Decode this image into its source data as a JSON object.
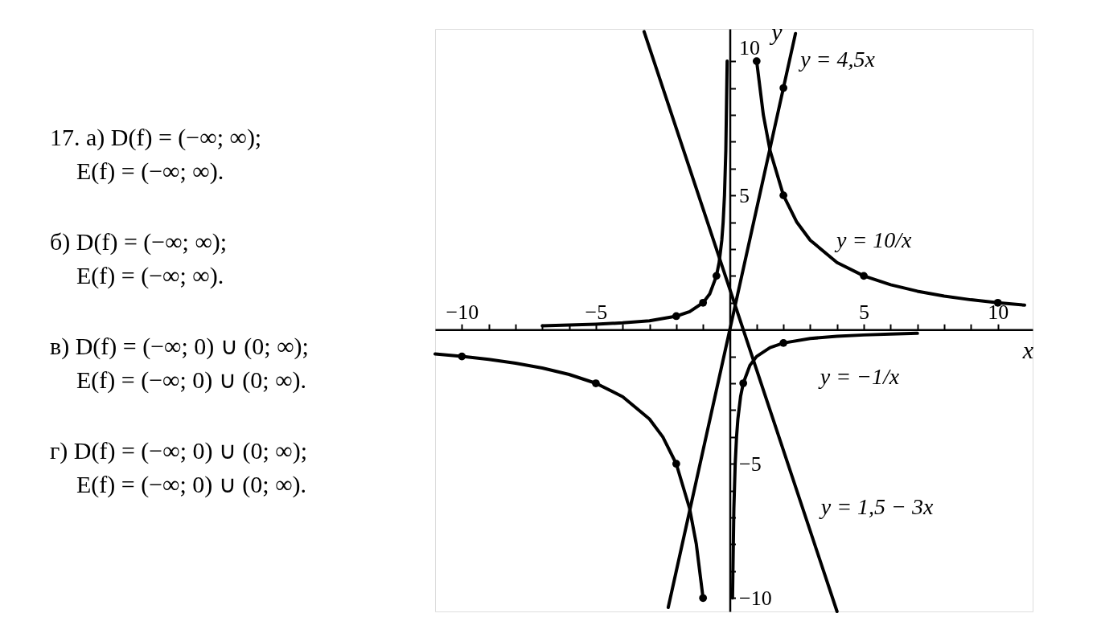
{
  "chart_data": {
    "type": "line",
    "xlabel": "x",
    "ylabel": "y",
    "xlim": [
      -11,
      11.3
    ],
    "ylim": [
      -10.5,
      11.2
    ],
    "xticks": [
      -10,
      {
        "value": -9,
        "label": null
      },
      {
        "value": -8,
        "label": null
      },
      {
        "value": -7,
        "label": null
      },
      {
        "value": -6,
        "label": null
      },
      -5,
      {
        "value": -4,
        "label": null
      },
      {
        "value": -3,
        "label": null
      },
      {
        "value": -2,
        "label": null
      },
      {
        "value": -1,
        "label": null
      },
      {
        "value": 1,
        "label": null
      },
      {
        "value": 2,
        "label": null
      },
      {
        "value": 3,
        "label": null
      },
      {
        "value": 4,
        "label": null
      },
      5,
      {
        "value": 6,
        "label": null
      },
      {
        "value": 7,
        "label": null
      },
      {
        "value": 8,
        "label": null
      },
      {
        "value": 9,
        "label": null
      },
      10
    ],
    "yticks": [
      -10,
      {
        "value": -9,
        "label": null
      },
      {
        "value": -8,
        "label": null
      },
      {
        "value": -7,
        "label": null
      },
      {
        "value": -6,
        "label": null
      },
      -5,
      {
        "value": -4,
        "label": null
      },
      {
        "value": -3,
        "label": null
      },
      {
        "value": -2,
        "label": null
      },
      {
        "value": -1,
        "label": null
      },
      {
        "value": 1,
        "label": null
      },
      {
        "value": 2,
        "label": null
      },
      {
        "value": 3,
        "label": null
      },
      {
        "value": 4,
        "label": null
      },
      5,
      {
        "value": 6,
        "label": null
      },
      {
        "value": 7,
        "label": null
      },
      {
        "value": 8,
        "label": null
      },
      {
        "value": 9,
        "label": null
      },
      10
    ],
    "series": [
      {
        "name": "y = 4,5x",
        "color": "#000000",
        "x": [
          -2.3,
          2.45
        ],
        "values": [
          -10.35,
          11.03
        ]
      },
      {
        "name": "y = 10/x",
        "color": "#000000",
        "x": [
          -11,
          -10,
          -9,
          -8,
          -7,
          -6,
          -5,
          -4,
          -3,
          -2.5,
          -2,
          -1.5,
          -1.25,
          -1,
          0,
          1,
          1.25,
          1.5,
          2,
          2.5,
          3,
          4,
          5,
          6,
          7,
          8,
          9,
          10,
          11
        ],
        "values": [
          -0.91,
          -1,
          -1.11,
          -1.25,
          -1.43,
          -1.67,
          -2,
          -2.5,
          -3.33,
          -4,
          -5,
          -6.67,
          -8,
          -10,
          null,
          10,
          8,
          6.67,
          5,
          4,
          3.33,
          2.5,
          2,
          1.67,
          1.43,
          1.25,
          1.11,
          1,
          0.91
        ]
      },
      {
        "name": "y = −1/x",
        "color": "#000000",
        "x": [
          -7,
          -6,
          -5,
          -4,
          -3,
          -2,
          -1.5,
          -1,
          -0.75,
          -0.5,
          -0.4,
          -0.3,
          -0.25,
          -0.2,
          -0.15,
          -0.1,
          0,
          0.1,
          0.15,
          0.2,
          0.25,
          0.3,
          0.4,
          0.5,
          0.75,
          1,
          1.5,
          2,
          3,
          4,
          5,
          6,
          7
        ],
        "values": [
          0.14,
          0.17,
          0.2,
          0.25,
          0.33,
          0.5,
          0.67,
          1,
          1.33,
          2,
          2.5,
          3.33,
          4,
          5,
          6.67,
          10,
          null,
          -10,
          -6.67,
          -5,
          -4,
          -3.33,
          -2.5,
          -2,
          -1.33,
          -1,
          -0.67,
          -0.5,
          -0.33,
          -0.25,
          -0.2,
          -0.17,
          -0.14
        ]
      },
      {
        "name": "y = 1,5 − 3x",
        "color": "#000000",
        "x": [
          -3.2,
          4
        ],
        "values": [
          11.1,
          -10.5
        ]
      },
      {
        "type": "scatter",
        "color": "#000000",
        "x": [
          -10,
          -5,
          -2,
          -1,
          1,
          2,
          5,
          10,
          -2,
          -1,
          -0.5,
          0.5,
          2,
          2
        ],
        "values": [
          -1,
          -2,
          -5,
          -10,
          10,
          5,
          2,
          1,
          0.5,
          1,
          2,
          -2,
          -0.5,
          9
        ]
      }
    ],
    "annotations": [
      "17. а) D(f) = (−∞; ∞);",
      "E(f) = (−∞; ∞).",
      "б) D(f) = (−∞; ∞);",
      "E(f) = (−∞; ∞).",
      "в) D(f) = (−∞; 0) ∪ (0; ∞);",
      "E(f) = (−∞; 0) ∪ (0; ∞).",
      "г) D(f) = (−∞; 0) ∪ (0; ∞);",
      "E(f) = (−∞; 0) ∪ (0; ∞)."
    ]
  }
}
